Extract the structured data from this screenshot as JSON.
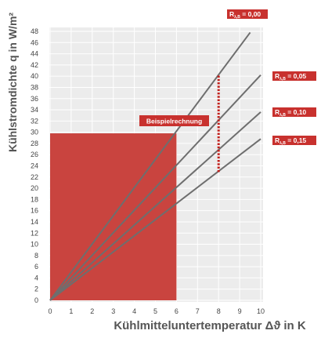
{
  "chart_data": {
    "type": "line",
    "title": "",
    "xlabel": "Kühlmitteluntertemperatur Δϑ in K",
    "ylabel": "Kühlstromdichte q in W/m²",
    "xlim": [
      0,
      10
    ],
    "ylim": [
      0,
      48
    ],
    "x_ticks": [
      "0",
      "1",
      "2",
      "3",
      "4",
      "5",
      "6",
      "7",
      "8",
      "9",
      "10"
    ],
    "y_ticks": [
      "0",
      "2",
      "4",
      "6",
      "8",
      "10",
      "12",
      "14",
      "16",
      "18",
      "20",
      "22",
      "24",
      "26",
      "28",
      "30",
      "32",
      "34",
      "36",
      "38",
      "40",
      "42",
      "44",
      "46",
      "48"
    ],
    "grid": true,
    "series": [
      {
        "name_main": "R",
        "name_sub": "λ,B",
        "name_value": " = 0,00",
        "x": [
          0,
          9.5
        ],
        "y": [
          0,
          47.8
        ]
      },
      {
        "name_main": "R",
        "name_sub": "λ,B",
        "name_value": " = 0,05",
        "x": [
          0,
          10
        ],
        "y": [
          0,
          40.2
        ]
      },
      {
        "name_main": "R",
        "name_sub": "λ,B",
        "name_value": " = 0,10",
        "x": [
          0,
          10
        ],
        "y": [
          0,
          33.6
        ]
      },
      {
        "name_main": "R",
        "name_sub": "λ,B",
        "name_value": " = 0,15",
        "x": [
          0,
          10
        ],
        "y": [
          0,
          28.8
        ]
      }
    ],
    "annotations": {
      "example_label": "Beispielrechnung",
      "example_area": {
        "x": [
          0,
          6
        ],
        "y": [
          0,
          29.8
        ]
      },
      "marker_line": {
        "x": 8,
        "y": [
          22.9,
          40.2
        ]
      }
    },
    "colors": {
      "series_line": "#6e6e6e",
      "area": "#c9443f",
      "tag_bg": "#c8312e",
      "marker": "#c0201c",
      "grid": "#ffffff",
      "plot_bg": "#ececec"
    }
  }
}
